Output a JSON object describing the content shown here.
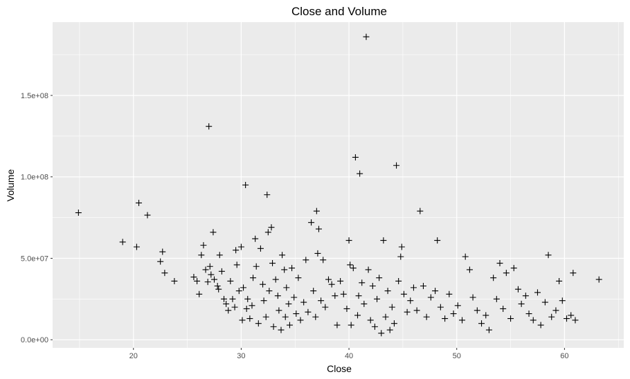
{
  "chart_data": {
    "type": "scatter",
    "title": "Close and Volume",
    "xlabel": "Close",
    "ylabel": "Volume",
    "xlim": [
      12.5,
      65.5
    ],
    "ylim": [
      -5000000,
      195000000
    ],
    "x_ticks": [
      20,
      30,
      40,
      50,
      60
    ],
    "x_tick_labels": [
      "20",
      "30",
      "40",
      "50",
      "60"
    ],
    "y_ticks": [
      0,
      50000000,
      100000000,
      150000000
    ],
    "y_tick_labels": [
      "0.0e+00",
      "5.0e+07",
      "1.0e+08",
      "1.5e+08"
    ],
    "marker": "plus",
    "grid": true,
    "background": "#ebebeb",
    "grid_color": "#ffffff",
    "point_color": "#000000",
    "points": [
      [
        14.9,
        78000000
      ],
      [
        19.0,
        60000000
      ],
      [
        20.3,
        57000000
      ],
      [
        20.5,
        84000000
      ],
      [
        21.3,
        76500000
      ],
      [
        22.5,
        48000000
      ],
      [
        22.7,
        54000000
      ],
      [
        22.9,
        41000000
      ],
      [
        23.8,
        36000000
      ],
      [
        25.6,
        38500000
      ],
      [
        25.9,
        36000000
      ],
      [
        26.1,
        28000000
      ],
      [
        26.3,
        52000000
      ],
      [
        26.5,
        58000000
      ],
      [
        26.7,
        43000000
      ],
      [
        26.9,
        35500000
      ],
      [
        27.0,
        131000000
      ],
      [
        27.1,
        45000000
      ],
      [
        27.2,
        40000000
      ],
      [
        27.4,
        66000000
      ],
      [
        27.5,
        37000000
      ],
      [
        27.8,
        33000000
      ],
      [
        27.9,
        31000000
      ],
      [
        28.0,
        52000000
      ],
      [
        28.2,
        42000000
      ],
      [
        28.4,
        25000000
      ],
      [
        28.6,
        22000000
      ],
      [
        28.8,
        18000000
      ],
      [
        29.0,
        36000000
      ],
      [
        29.2,
        25000000
      ],
      [
        29.4,
        20000000
      ],
      [
        29.5,
        55000000
      ],
      [
        29.6,
        46000000
      ],
      [
        29.8,
        30000000
      ],
      [
        30.0,
        57000000
      ],
      [
        30.1,
        12000000
      ],
      [
        30.2,
        32000000
      ],
      [
        30.4,
        95000000
      ],
      [
        30.5,
        19000000
      ],
      [
        30.6,
        25000000
      ],
      [
        30.8,
        13000000
      ],
      [
        31.0,
        21000000
      ],
      [
        31.1,
        38000000
      ],
      [
        31.3,
        62000000
      ],
      [
        31.4,
        45000000
      ],
      [
        31.6,
        10000000
      ],
      [
        31.8,
        56000000
      ],
      [
        32.0,
        34000000
      ],
      [
        32.1,
        24000000
      ],
      [
        32.3,
        14000000
      ],
      [
        32.4,
        89000000
      ],
      [
        32.5,
        66000000
      ],
      [
        32.6,
        30000000
      ],
      [
        32.8,
        69000000
      ],
      [
        32.9,
        47000000
      ],
      [
        33.0,
        8000000
      ],
      [
        33.2,
        37000000
      ],
      [
        33.4,
        27000000
      ],
      [
        33.5,
        18000000
      ],
      [
        33.7,
        6000000
      ],
      [
        33.8,
        52000000
      ],
      [
        34.0,
        43000000
      ],
      [
        34.1,
        14000000
      ],
      [
        34.2,
        32000000
      ],
      [
        34.4,
        22000000
      ],
      [
        34.5,
        9000000
      ],
      [
        34.7,
        44000000
      ],
      [
        34.9,
        26000000
      ],
      [
        35.1,
        16000000
      ],
      [
        35.3,
        38000000
      ],
      [
        35.5,
        12000000
      ],
      [
        35.8,
        23000000
      ],
      [
        36.0,
        49000000
      ],
      [
        36.2,
        17000000
      ],
      [
        36.5,
        72000000
      ],
      [
        36.7,
        30000000
      ],
      [
        36.9,
        14000000
      ],
      [
        37.0,
        79000000
      ],
      [
        37.1,
        53000000
      ],
      [
        37.2,
        68000000
      ],
      [
        37.4,
        24000000
      ],
      [
        37.6,
        49000000
      ],
      [
        37.8,
        20000000
      ],
      [
        38.1,
        37000000
      ],
      [
        38.4,
        34000000
      ],
      [
        38.7,
        27000000
      ],
      [
        38.9,
        9000000
      ],
      [
        39.2,
        36000000
      ],
      [
        39.5,
        28000000
      ],
      [
        39.8,
        19000000
      ],
      [
        40.0,
        61000000
      ],
      [
        40.1,
        46000000
      ],
      [
        40.2,
        9000000
      ],
      [
        40.4,
        44000000
      ],
      [
        40.6,
        112000000
      ],
      [
        40.8,
        15000000
      ],
      [
        40.9,
        27000000
      ],
      [
        41.0,
        102000000
      ],
      [
        41.2,
        35000000
      ],
      [
        41.4,
        22000000
      ],
      [
        41.6,
        186000000
      ],
      [
        41.8,
        43000000
      ],
      [
        42.0,
        12000000
      ],
      [
        42.2,
        33000000
      ],
      [
        42.4,
        8000000
      ],
      [
        42.6,
        25000000
      ],
      [
        42.8,
        38000000
      ],
      [
        43.0,
        4000000
      ],
      [
        43.2,
        61000000
      ],
      [
        43.4,
        14000000
      ],
      [
        43.6,
        30000000
      ],
      [
        43.8,
        6000000
      ],
      [
        44.0,
        20000000
      ],
      [
        44.2,
        10000000
      ],
      [
        44.4,
        107000000
      ],
      [
        44.6,
        36000000
      ],
      [
        44.8,
        51000000
      ],
      [
        44.9,
        57000000
      ],
      [
        45.1,
        28000000
      ],
      [
        45.4,
        17000000
      ],
      [
        45.7,
        24000000
      ],
      [
        46.0,
        32000000
      ],
      [
        46.3,
        18000000
      ],
      [
        46.6,
        79000000
      ],
      [
        46.9,
        33000000
      ],
      [
        47.2,
        14000000
      ],
      [
        47.6,
        26000000
      ],
      [
        48.0,
        30000000
      ],
      [
        48.2,
        61000000
      ],
      [
        48.5,
        20000000
      ],
      [
        48.9,
        13000000
      ],
      [
        49.3,
        28000000
      ],
      [
        49.7,
        16000000
      ],
      [
        50.1,
        21000000
      ],
      [
        50.5,
        12000000
      ],
      [
        50.8,
        51000000
      ],
      [
        51.2,
        43000000
      ],
      [
        51.5,
        26000000
      ],
      [
        51.9,
        18000000
      ],
      [
        52.3,
        10000000
      ],
      [
        52.7,
        15000000
      ],
      [
        53.0,
        6000000
      ],
      [
        53.4,
        38000000
      ],
      [
        53.7,
        25000000
      ],
      [
        54.0,
        47000000
      ],
      [
        54.3,
        19000000
      ],
      [
        54.6,
        41000000
      ],
      [
        55.0,
        13000000
      ],
      [
        55.3,
        44000000
      ],
      [
        55.7,
        31000000
      ],
      [
        56.0,
        22000000
      ],
      [
        56.4,
        27000000
      ],
      [
        56.7,
        16000000
      ],
      [
        57.1,
        12000000
      ],
      [
        57.5,
        29000000
      ],
      [
        57.8,
        9000000
      ],
      [
        58.2,
        23000000
      ],
      [
        58.5,
        52000000
      ],
      [
        58.8,
        14000000
      ],
      [
        59.2,
        18000000
      ],
      [
        59.5,
        36000000
      ],
      [
        59.8,
        24000000
      ],
      [
        60.2,
        13000000
      ],
      [
        60.6,
        15000000
      ],
      [
        60.8,
        41000000
      ],
      [
        61.0,
        12000000
      ],
      [
        63.2,
        37000000
      ]
    ]
  }
}
